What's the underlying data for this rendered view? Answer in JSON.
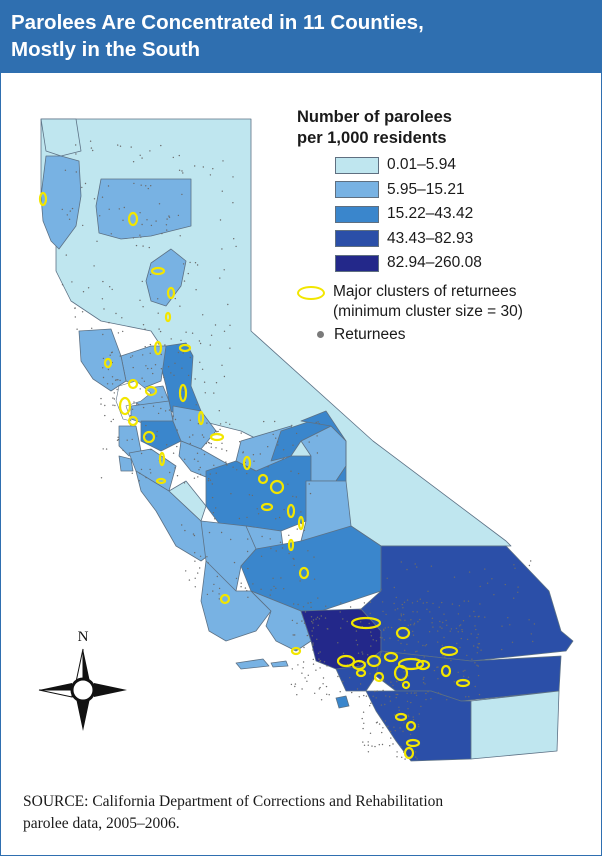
{
  "title": {
    "line1": "Parolees Are Concentrated in 11 Counties,",
    "line2": "Mostly in the South"
  },
  "legend": {
    "title_line1": "Number of parolees",
    "title_line2": "per 1,000 residents",
    "classes": [
      {
        "label": "0.01–5.94",
        "color": "#bfe6ef"
      },
      {
        "label": "5.95–15.21",
        "color": "#78b2e3"
      },
      {
        "label": "15.22–43.42",
        "color": "#3a86cc"
      },
      {
        "label": "43.43–82.93",
        "color": "#2b4fa8"
      },
      {
        "label": "82.94–260.08",
        "color": "#23288a"
      }
    ],
    "cluster_line1": "Major clusters of returnees",
    "cluster_line2": "(minimum cluster size = 30)",
    "returnees": "Returnees",
    "cluster_color": "#f2e600",
    "returnee_color": "#7a7a7a"
  },
  "compass": {
    "north": "N"
  },
  "source": {
    "line1": "SOURCE: California Department of Corrections and Rehabilitation",
    "line2": "parolee data, 2005–2006."
  },
  "colors": {
    "header": "#2f6fb0",
    "border": "#2f6fb0",
    "water": "#ffffff",
    "county_line": "#5c7185"
  }
}
